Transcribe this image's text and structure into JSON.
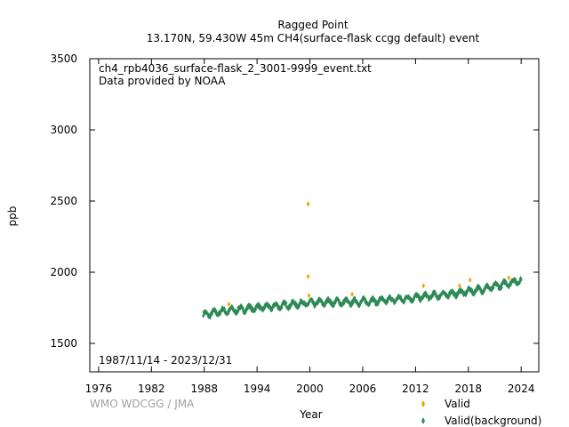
{
  "chart_data": {
    "type": "scatter",
    "title": "Ragged Point",
    "subtitle": "13.170N, 59.430W 45m    CH4(surface-flask ccgg default) event",
    "file_label": "ch4_rpb4036_surface-flask_2_3001-9999_event.txt",
    "provider_label": "Data provided by NOAA",
    "date_range_label": "1987/11/14 - 2023/12/31",
    "credit": "WMO WDCGG / JMA",
    "xlabel": "Year",
    "ylabel": "ppb",
    "xlim": [
      1975,
      2026
    ],
    "ylim": [
      1300,
      3500
    ],
    "xticks": [
      1976,
      1982,
      1988,
      1994,
      2000,
      2006,
      2012,
      2018,
      2024
    ],
    "yticks": [
      1500,
      2000,
      2500,
      3000,
      3500
    ],
    "grid": false,
    "legend_position": "bottom-right",
    "series": [
      {
        "name": "Valid",
        "color": "#f0a000",
        "marker": "diamond",
        "points": [
          [
            1990.8,
            1775
          ],
          [
            1999.8,
            2480
          ],
          [
            1999.8,
            1970
          ],
          [
            1999.9,
            1835
          ],
          [
            2004.8,
            1845
          ],
          [
            2012.9,
            1905
          ],
          [
            2017.0,
            1905
          ],
          [
            2018.2,
            1945
          ],
          [
            2022.6,
            1960
          ]
        ]
      },
      {
        "name": "Valid(background)",
        "color": "#2e8b57",
        "marker": "diamond",
        "trend": [
          [
            1987.9,
            1700
          ],
          [
            1990,
            1725
          ],
          [
            1993,
            1745
          ],
          [
            1996,
            1760
          ],
          [
            1999,
            1780
          ],
          [
            2002,
            1790
          ],
          [
            2005,
            1790
          ],
          [
            2008,
            1800
          ],
          [
            2011,
            1815
          ],
          [
            2014,
            1835
          ],
          [
            2017,
            1855
          ],
          [
            2020,
            1885
          ],
          [
            2022,
            1915
          ],
          [
            2024,
            1945
          ]
        ],
        "seasonal_amplitude": 18,
        "scatter_spread": 12
      }
    ]
  }
}
